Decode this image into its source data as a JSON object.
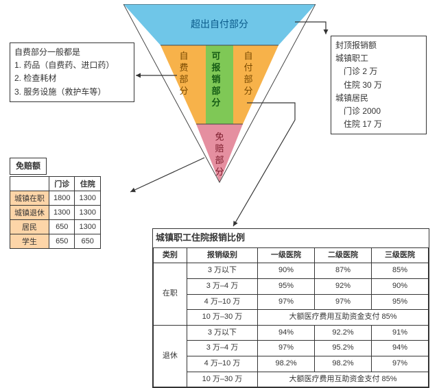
{
  "triangle": {
    "top_color": "#6fc6e8",
    "mid_left_color": "#f7b24a",
    "mid_right_color": "#f7b24a",
    "center_color": "#7fc856",
    "bottom_color": "#e58fa0",
    "top_label": "超出自付部分",
    "mid_left_label": "自费部分",
    "mid_right_label": "自付部分",
    "center_label": "可报销部分",
    "bottom_label": "免赔部分"
  },
  "self_pay_box": {
    "title": "自费部分一般都是",
    "items": [
      "1. 药品（自费药、进口药）",
      "2. 检查耗材",
      "3. 服务设施（救护车等）"
    ]
  },
  "cap_box": {
    "title": "封顶报销额",
    "lines": [
      "城镇职工",
      "　门诊 2 万",
      "　住院 30 万",
      "城镇居民",
      "　门诊 2000",
      "　住院 17 万"
    ]
  },
  "deductible": {
    "title": "免赔额",
    "columns": [
      "",
      "门诊",
      "住院"
    ],
    "rows": [
      {
        "label": "城镇在职",
        "vals": [
          "1800",
          "1300"
        ]
      },
      {
        "label": "城镇退休",
        "vals": [
          "1300",
          "1300"
        ]
      },
      {
        "label": "居民",
        "vals": [
          "650",
          "1300"
        ]
      },
      {
        "label": "学生",
        "vals": [
          "650",
          "650"
        ]
      }
    ]
  },
  "ratio": {
    "title": "城镇职工住院报销比例",
    "head": [
      "类别",
      "报销级别",
      "一级医院",
      "二级医院",
      "三级医院"
    ],
    "groups": [
      {
        "label": "在职",
        "rows": [
          [
            "3 万以下",
            "90%",
            "87%",
            "85%"
          ],
          [
            "3 万–4 万",
            "95%",
            "92%",
            "90%"
          ],
          [
            "4 万–10 万",
            "97%",
            "97%",
            "95%"
          ],
          [
            "10 万–30 万",
            "大额医疗费用互助资金支付 85%"
          ]
        ]
      },
      {
        "label": "退休",
        "rows": [
          [
            "3 万以下",
            "94%",
            "92.2%",
            "91%"
          ],
          [
            "3 万–4 万",
            "97%",
            "95.2%",
            "94%"
          ],
          [
            "4 万–10 万",
            "98.2%",
            "98.2%",
            "97%"
          ],
          [
            "10 万–30 万",
            "大额医疗费用互助资金支付 85%"
          ]
        ]
      }
    ]
  }
}
